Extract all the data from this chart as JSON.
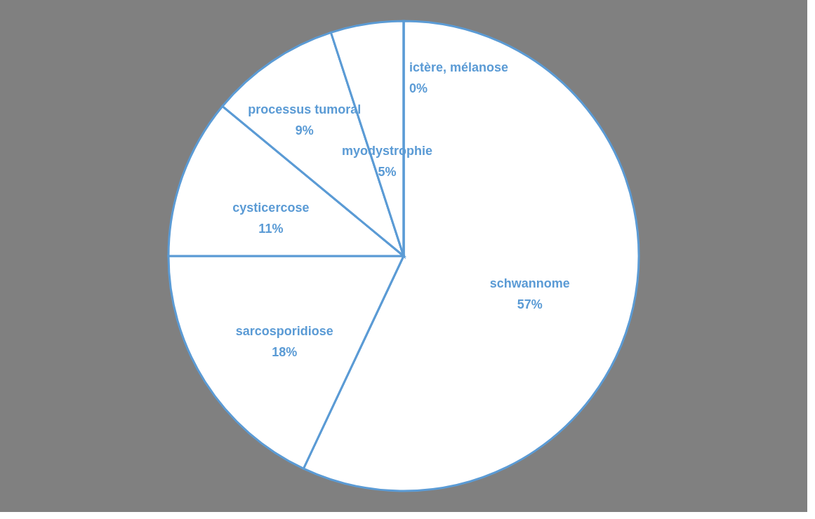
{
  "chart_data": {
    "type": "pie",
    "categories": [
      "schwannome",
      "sarcosporidiose",
      "cysticercose",
      "processus tumoral",
      "myodystrophie",
      "ictère, mélanose"
    ],
    "values": [
      57,
      18,
      11,
      9,
      5,
      0
    ],
    "value_labels": [
      "57%",
      "18%",
      "11%",
      "9%",
      "5%",
      "0%"
    ],
    "colors": [
      "#ffffff",
      "#ffffff",
      "#ffffff",
      "#ffffff",
      "#ffffff",
      "#ffffff"
    ],
    "legend": false
  }
}
